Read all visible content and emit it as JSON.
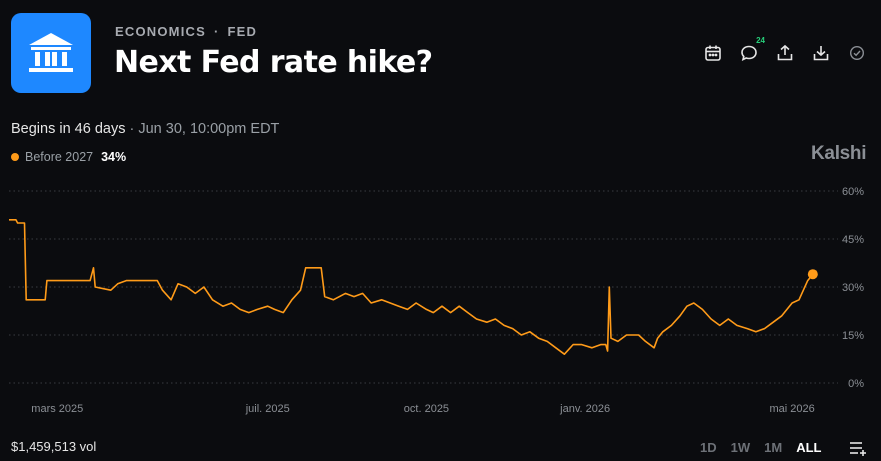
{
  "header": {
    "category": "ECONOMICS",
    "separator": "·",
    "subcategory": "FED",
    "title": "Next Fed rate hike?",
    "icon": "bank-building-icon",
    "comment_count": "24"
  },
  "subline": {
    "begins": "Begins in 46 days",
    "sep": " · ",
    "datetime": "Jun 30, 10:00pm EDT"
  },
  "legend": {
    "label": "Before 2027",
    "value": "34%"
  },
  "brand": "Kalshi",
  "footer": {
    "volume": "$1,459,513 vol",
    "ranges": [
      "1D",
      "1W",
      "1M",
      "ALL"
    ],
    "active_range": "ALL"
  },
  "colors": {
    "accent": "#ff9b19",
    "tile": "#1e88ff",
    "background": "#0b0c0f"
  },
  "chart_data": {
    "type": "line",
    "y_ticks": [
      "60%",
      "45%",
      "30%",
      "15%",
      "0%"
    ],
    "ylim": [
      0,
      60
    ],
    "x_ticks": [
      {
        "label": "mars 2025",
        "date": "2025-03-01"
      },
      {
        "label": "juil. 2025",
        "date": "2025-07-01"
      },
      {
        "label": "oct. 2025",
        "date": "2025-10-01"
      },
      {
        "label": "janv. 2026",
        "date": "2026-01-01"
      },
      {
        "label": "mai 2026",
        "date": "2026-05-01"
      }
    ],
    "xlim": [
      "2025-02-01",
      "2026-05-16"
    ],
    "grid": true,
    "series": [
      {
        "name": "Before 2027",
        "points": [
          [
            "2025-02-01",
            51
          ],
          [
            "2025-02-05",
            51
          ],
          [
            "2025-02-06",
            50
          ],
          [
            "2025-02-10",
            50
          ],
          [
            "2025-02-11",
            26
          ],
          [
            "2025-02-22",
            26
          ],
          [
            "2025-02-23",
            32
          ],
          [
            "2025-03-20",
            32
          ],
          [
            "2025-03-22",
            36
          ],
          [
            "2025-03-23",
            30
          ],
          [
            "2025-04-01",
            29
          ],
          [
            "2025-04-05",
            31
          ],
          [
            "2025-04-10",
            32
          ],
          [
            "2025-04-20",
            32
          ],
          [
            "2025-04-28",
            32
          ],
          [
            "2025-05-01",
            29
          ],
          [
            "2025-05-06",
            26
          ],
          [
            "2025-05-10",
            31
          ],
          [
            "2025-05-15",
            30
          ],
          [
            "2025-05-20",
            28
          ],
          [
            "2025-05-25",
            30
          ],
          [
            "2025-05-30",
            26
          ],
          [
            "2025-06-05",
            24
          ],
          [
            "2025-06-10",
            25
          ],
          [
            "2025-06-15",
            23
          ],
          [
            "2025-06-20",
            22
          ],
          [
            "2025-06-25",
            23
          ],
          [
            "2025-07-01",
            24
          ],
          [
            "2025-07-05",
            23
          ],
          [
            "2025-07-10",
            22
          ],
          [
            "2025-07-15",
            26
          ],
          [
            "2025-07-20",
            29
          ],
          [
            "2025-07-23",
            36
          ],
          [
            "2025-08-01",
            36
          ],
          [
            "2025-08-03",
            27
          ],
          [
            "2025-08-08",
            26
          ],
          [
            "2025-08-15",
            28
          ],
          [
            "2025-08-20",
            27
          ],
          [
            "2025-08-25",
            28
          ],
          [
            "2025-08-30",
            25
          ],
          [
            "2025-09-05",
            26
          ],
          [
            "2025-09-10",
            25
          ],
          [
            "2025-09-15",
            24
          ],
          [
            "2025-09-20",
            23
          ],
          [
            "2025-09-25",
            25
          ],
          [
            "2025-10-01",
            23
          ],
          [
            "2025-10-05",
            22
          ],
          [
            "2025-10-10",
            24
          ],
          [
            "2025-10-15",
            22
          ],
          [
            "2025-10-20",
            24
          ],
          [
            "2025-10-25",
            22
          ],
          [
            "2025-10-30",
            20
          ],
          [
            "2025-11-05",
            19
          ],
          [
            "2025-11-10",
            20
          ],
          [
            "2025-11-15",
            18
          ],
          [
            "2025-11-20",
            17
          ],
          [
            "2025-11-25",
            15
          ],
          [
            "2025-11-30",
            16
          ],
          [
            "2025-12-05",
            14
          ],
          [
            "2025-12-10",
            13
          ],
          [
            "2025-12-15",
            11
          ],
          [
            "2025-12-20",
            9
          ],
          [
            "2025-12-25",
            12
          ],
          [
            "2025-12-30",
            12
          ],
          [
            "2026-01-05",
            11
          ],
          [
            "2026-01-10",
            12
          ],
          [
            "2026-01-13",
            12
          ],
          [
            "2026-01-14",
            10
          ],
          [
            "2026-01-15",
            30
          ],
          [
            "2026-01-16",
            14
          ],
          [
            "2026-01-20",
            13
          ],
          [
            "2026-01-25",
            15
          ],
          [
            "2026-02-01",
            15
          ],
          [
            "2026-02-05",
            13
          ],
          [
            "2026-02-10",
            11
          ],
          [
            "2026-02-12",
            14
          ],
          [
            "2026-02-15",
            16
          ],
          [
            "2026-02-20",
            18
          ],
          [
            "2026-02-25",
            21
          ],
          [
            "2026-03-01",
            24
          ],
          [
            "2026-03-05",
            25
          ],
          [
            "2026-03-10",
            23
          ],
          [
            "2026-03-15",
            20
          ],
          [
            "2026-03-20",
            18
          ],
          [
            "2026-03-25",
            20
          ],
          [
            "2026-03-30",
            18
          ],
          [
            "2026-04-05",
            17
          ],
          [
            "2026-04-10",
            16
          ],
          [
            "2026-04-15",
            17
          ],
          [
            "2026-04-20",
            19
          ],
          [
            "2026-04-25",
            21
          ],
          [
            "2026-05-01",
            25
          ],
          [
            "2026-05-05",
            26
          ],
          [
            "2026-05-10",
            32
          ],
          [
            "2026-05-13",
            34
          ]
        ]
      }
    ]
  }
}
